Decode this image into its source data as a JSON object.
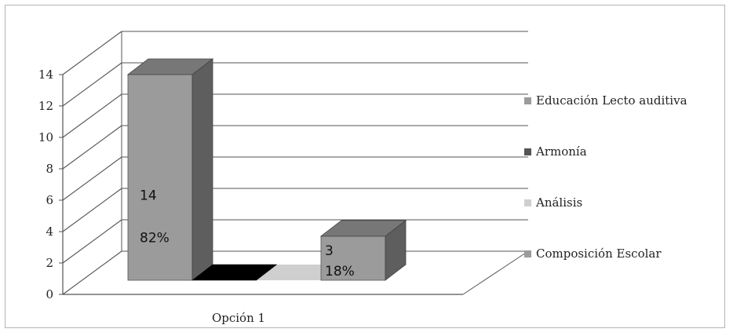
{
  "chart_data": {
    "type": "bar",
    "three_d": true,
    "categories": [
      "Opción 1"
    ],
    "series": [
      {
        "name": "Educación Lecto auditiva",
        "values": [
          14
        ],
        "labels": [
          "14",
          "82%"
        ],
        "color": "#9b9b9b",
        "side_color": "#5e5e5e",
        "top_color": "#777777"
      },
      {
        "name": "Armonía",
        "values": [
          0
        ],
        "labels": [],
        "color": "#000000",
        "side_color": "#000000",
        "top_color": "#000000"
      },
      {
        "name": "Análisis",
        "values": [
          0
        ],
        "labels": [],
        "color": "#cfcfcf",
        "side_color": "#cfcfcf",
        "top_color": "#cfcfcf"
      },
      {
        "name": "Composición Escolar",
        "values": [
          3
        ],
        "labels": [
          "3",
          "18%"
        ],
        "color": "#9b9b9b",
        "side_color": "#5e5e5e",
        "top_color": "#777777"
      }
    ],
    "yticks": [
      "0",
      "2",
      "4",
      "6",
      "8",
      "10",
      "12",
      "14"
    ],
    "ylim": [
      0,
      14
    ],
    "grid": true,
    "legend_position": "right"
  }
}
